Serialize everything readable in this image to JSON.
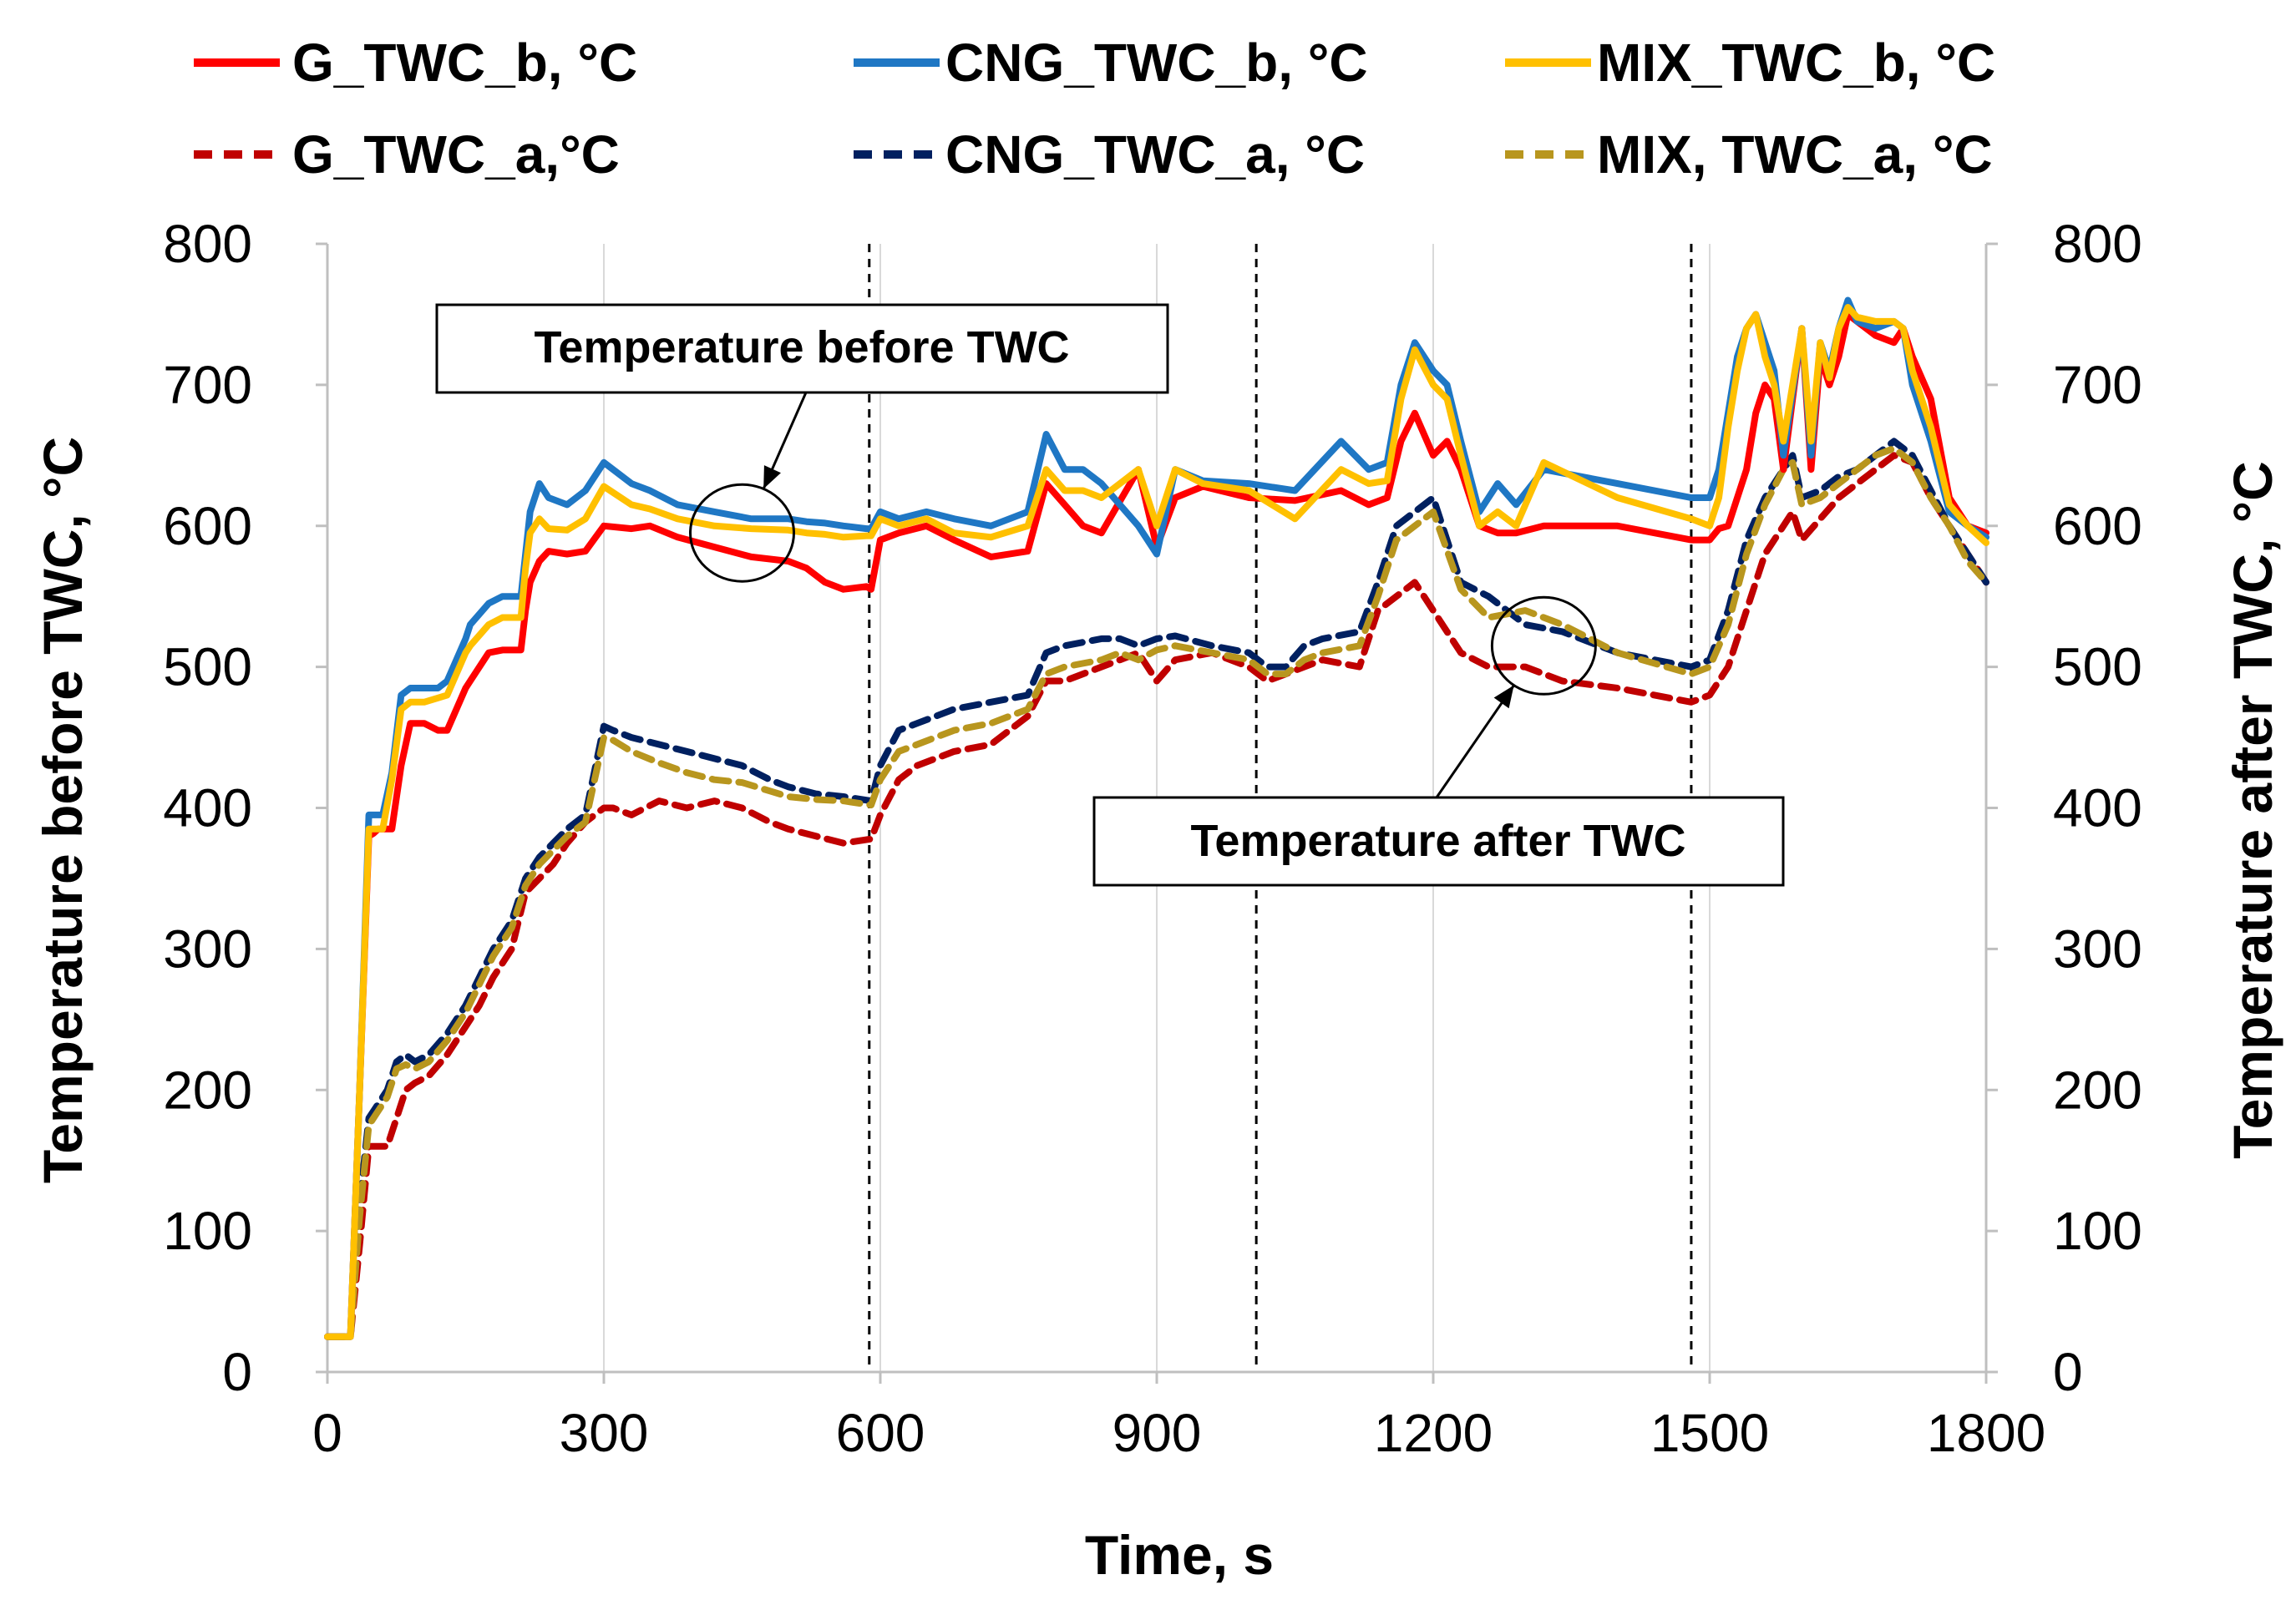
{
  "chart_data": {
    "type": "line",
    "title": "",
    "xlabel": "Time, s",
    "ylabel_left": "Temperature before TWC, °C",
    "ylabel_right": "Temperature after TWC, °C",
    "xlim": [
      0,
      1800
    ],
    "ylim": [
      0,
      800
    ],
    "x_ticks": [
      0,
      300,
      600,
      900,
      1200,
      1500,
      1800
    ],
    "x_tick_labels": [
      "0",
      "300",
      "600",
      "900",
      "1200",
      "1500",
      "1800"
    ],
    "y_ticks": [
      0,
      100,
      200,
      300,
      400,
      500,
      600,
      700,
      800
    ],
    "y_tick_labels": [
      "0",
      "100",
      "200",
      "300",
      "400",
      "500",
      "600",
      "700",
      "800"
    ],
    "grid": "vertical",
    "phase_boundaries": [
      588,
      1008,
      1480
    ],
    "annotations": [
      {
        "text": "Temperature before TWC",
        "target": [
          450,
          595
        ]
      },
      {
        "text": "Temperature after TWC",
        "target": [
          1320,
          515
        ]
      }
    ],
    "series": [
      {
        "name": "G_TWC_b, °C",
        "color": "#ff0000",
        "style": "solid",
        "x": [
          0,
          25,
          35,
          45,
          50,
          55,
          60,
          70,
          80,
          90,
          105,
          120,
          130,
          150,
          155,
          175,
          190,
          210,
          215,
          220,
          230,
          240,
          260,
          280,
          300,
          330,
          350,
          380,
          420,
          460,
          500,
          520,
          540,
          560,
          585,
          590,
          600,
          620,
          650,
          680,
          720,
          760,
          780,
          800,
          820,
          840,
          880,
          900,
          920,
          950,
          1000,
          1050,
          1100,
          1130,
          1150,
          1165,
          1180,
          1200,
          1215,
          1230,
          1250,
          1270,
          1290,
          1320,
          1400,
          1480,
          1500,
          1510,
          1520,
          1530,
          1540,
          1550,
          1560,
          1570,
          1580,
          1600,
          1610,
          1620,
          1630,
          1640,
          1650,
          1660,
          1680,
          1700,
          1710,
          1720,
          1740,
          1760,
          1780,
          1800
        ],
        "y": [
          25,
          25,
          200,
          380,
          382,
          385,
          385,
          385,
          430,
          460,
          460,
          455,
          455,
          485,
          490,
          510,
          512,
          512,
          540,
          560,
          575,
          582,
          580,
          582,
          600,
          598,
          600,
          592,
          585,
          578,
          575,
          570,
          560,
          555,
          557,
          555,
          590,
          595,
          600,
          590,
          578,
          582,
          630,
          615,
          600,
          595,
          640,
          585,
          620,
          628,
          620,
          618,
          625,
          615,
          620,
          660,
          680,
          650,
          660,
          640,
          600,
          595,
          595,
          600,
          600,
          590,
          590,
          598,
          600,
          620,
          640,
          680,
          700,
          690,
          640,
          740,
          640,
          720,
          700,
          720,
          750,
          745,
          735,
          730,
          740,
          720,
          690,
          620,
          600,
          595
        ]
      },
      {
        "name": "CNG_TWC_b, °C",
        "color": "#1f77c4",
        "style": "solid",
        "x": [
          0,
          25,
          35,
          45,
          50,
          55,
          60,
          70,
          80,
          90,
          105,
          120,
          130,
          150,
          155,
          175,
          190,
          210,
          215,
          220,
          230,
          240,
          260,
          280,
          300,
          330,
          350,
          380,
          420,
          460,
          500,
          520,
          540,
          560,
          585,
          590,
          600,
          620,
          650,
          680,
          720,
          760,
          780,
          800,
          820,
          840,
          880,
          900,
          920,
          950,
          1000,
          1050,
          1100,
          1130,
          1150,
          1165,
          1180,
          1200,
          1215,
          1230,
          1250,
          1270,
          1290,
          1320,
          1400,
          1480,
          1500,
          1510,
          1520,
          1530,
          1540,
          1550,
          1560,
          1570,
          1580,
          1600,
          1610,
          1620,
          1630,
          1640,
          1650,
          1660,
          1680,
          1700,
          1710,
          1720,
          1740,
          1760,
          1780,
          1800
        ],
        "y": [
          25,
          25,
          200,
          395,
          395,
          395,
          395,
          425,
          480,
          485,
          485,
          485,
          490,
          520,
          530,
          545,
          550,
          550,
          580,
          610,
          630,
          620,
          615,
          625,
          645,
          630,
          625,
          615,
          610,
          605,
          605,
          603,
          602,
          600,
          598,
          598,
          610,
          605,
          610,
          605,
          600,
          610,
          665,
          640,
          640,
          630,
          600,
          580,
          640,
          632,
          630,
          625,
          660,
          640,
          645,
          700,
          730,
          710,
          700,
          660,
          610,
          630,
          615,
          640,
          630,
          620,
          620,
          640,
          680,
          720,
          740,
          750,
          730,
          710,
          650,
          740,
          650,
          730,
          710,
          740,
          760,
          745,
          740,
          745,
          740,
          700,
          660,
          610,
          600,
          592
        ]
      },
      {
        "name": "MIX_TWC_b, °C",
        "color": "#ffc000",
        "style": "solid",
        "x": [
          0,
          25,
          35,
          45,
          50,
          55,
          60,
          70,
          80,
          90,
          105,
          120,
          130,
          150,
          155,
          175,
          190,
          210,
          215,
          220,
          230,
          240,
          260,
          280,
          300,
          330,
          350,
          380,
          420,
          460,
          500,
          520,
          540,
          560,
          585,
          590,
          600,
          620,
          650,
          680,
          720,
          760,
          780,
          800,
          820,
          840,
          880,
          900,
          920,
          950,
          1000,
          1050,
          1100,
          1130,
          1150,
          1165,
          1180,
          1200,
          1215,
          1230,
          1250,
          1270,
          1290,
          1320,
          1400,
          1480,
          1500,
          1510,
          1520,
          1530,
          1540,
          1550,
          1560,
          1570,
          1580,
          1600,
          1610,
          1620,
          1630,
          1640,
          1650,
          1660,
          1680,
          1700,
          1710,
          1720,
          1740,
          1760,
          1780,
          1800
        ],
        "y": [
          25,
          25,
          200,
          385,
          385,
          385,
          385,
          420,
          470,
          475,
          475,
          478,
          480,
          510,
          515,
          530,
          535,
          535,
          570,
          595,
          605,
          598,
          597,
          605,
          628,
          615,
          612,
          605,
          600,
          598,
          597,
          595,
          594,
          592,
          593,
          593,
          605,
          600,
          605,
          595,
          592,
          600,
          640,
          625,
          625,
          620,
          640,
          600,
          640,
          630,
          625,
          605,
          640,
          630,
          632,
          690,
          725,
          700,
          690,
          650,
          600,
          610,
          600,
          645,
          620,
          605,
          600,
          620,
          670,
          710,
          740,
          750,
          720,
          700,
          660,
          740,
          660,
          730,
          705,
          740,
          755,
          748,
          745,
          745,
          740,
          710,
          670,
          615,
          600,
          588
        ]
      },
      {
        "name": "G_TWC_a,°C",
        "color": "#c00000",
        "style": "dashed",
        "x": [
          0,
          25,
          35,
          45,
          55,
          65,
          75,
          85,
          95,
          110,
          130,
          150,
          165,
          180,
          200,
          215,
          230,
          245,
          260,
          280,
          300,
          310,
          330,
          360,
          390,
          420,
          450,
          480,
          500,
          530,
          560,
          590,
          600,
          620,
          640,
          680,
          720,
          760,
          780,
          800,
          840,
          860,
          880,
          900,
          920,
          960,
          1000,
          1020,
          1040,
          1060,
          1080,
          1120,
          1140,
          1160,
          1180,
          1200,
          1230,
          1260,
          1300,
          1340,
          1400,
          1480,
          1500,
          1520,
          1540,
          1560,
          1580,
          1590,
          1600,
          1620,
          1640,
          1660,
          1680,
          1700,
          1720,
          1740,
          1760,
          1780,
          1800
        ],
        "y": [
          25,
          25,
          90,
          160,
          160,
          160,
          180,
          200,
          205,
          210,
          225,
          245,
          260,
          280,
          300,
          340,
          350,
          360,
          375,
          390,
          400,
          400,
          395,
          405,
          400,
          405,
          400,
          390,
          385,
          380,
          375,
          378,
          395,
          420,
          430,
          440,
          445,
          465,
          490,
          490,
          500,
          505,
          510,
          490,
          505,
          510,
          500,
          490,
          495,
          500,
          505,
          500,
          540,
          550,
          560,
          540,
          510,
          500,
          500,
          490,
          485,
          475,
          480,
          500,
          540,
          580,
          600,
          610,
          590,
          605,
          620,
          630,
          640,
          650,
          645,
          620,
          600,
          580,
          560
        ]
      },
      {
        "name": "CNG_TWC_a, °C",
        "color": "#002060",
        "style": "dashed",
        "x": [
          0,
          25,
          35,
          45,
          55,
          65,
          75,
          85,
          95,
          110,
          130,
          150,
          165,
          180,
          200,
          215,
          230,
          245,
          260,
          280,
          300,
          310,
          330,
          360,
          390,
          420,
          450,
          480,
          500,
          530,
          560,
          590,
          600,
          620,
          640,
          680,
          720,
          760,
          780,
          800,
          840,
          860,
          880,
          900,
          920,
          960,
          1000,
          1020,
          1040,
          1060,
          1080,
          1120,
          1140,
          1160,
          1180,
          1200,
          1230,
          1260,
          1300,
          1340,
          1400,
          1480,
          1500,
          1520,
          1540,
          1560,
          1580,
          1590,
          1600,
          1620,
          1640,
          1660,
          1680,
          1700,
          1720,
          1740,
          1760,
          1780,
          1800
        ],
        "y": [
          25,
          25,
          120,
          180,
          190,
          200,
          220,
          225,
          220,
          225,
          240,
          260,
          280,
          300,
          320,
          350,
          365,
          375,
          385,
          395,
          458,
          455,
          450,
          445,
          440,
          435,
          430,
          420,
          415,
          410,
          408,
          405,
          430,
          455,
          460,
          470,
          475,
          480,
          510,
          515,
          520,
          520,
          515,
          520,
          522,
          515,
          510,
          500,
          500,
          515,
          520,
          525,
          560,
          600,
          610,
          620,
          560,
          550,
          530,
          525,
          510,
          500,
          505,
          540,
          590,
          620,
          640,
          650,
          620,
          625,
          635,
          640,
          650,
          660,
          650,
          625,
          600,
          580,
          560
        ]
      },
      {
        "name": "MIX, TWC_a, °C",
        "color": "#b8961e",
        "style": "dashed",
        "x": [
          0,
          25,
          35,
          45,
          55,
          65,
          75,
          85,
          95,
          110,
          130,
          150,
          165,
          180,
          200,
          215,
          230,
          245,
          260,
          280,
          300,
          310,
          330,
          360,
          390,
          420,
          450,
          480,
          500,
          530,
          560,
          590,
          600,
          620,
          640,
          680,
          720,
          760,
          780,
          800,
          840,
          860,
          880,
          900,
          920,
          960,
          1000,
          1020,
          1040,
          1060,
          1080,
          1120,
          1140,
          1160,
          1180,
          1200,
          1230,
          1260,
          1300,
          1340,
          1400,
          1480,
          1500,
          1520,
          1540,
          1560,
          1580,
          1590,
          1600,
          1620,
          1640,
          1660,
          1680,
          1700,
          1720,
          1740,
          1760,
          1780,
          1800
        ],
        "y": [
          25,
          25,
          110,
          175,
          185,
          195,
          215,
          218,
          215,
          220,
          235,
          255,
          275,
          295,
          315,
          345,
          360,
          370,
          380,
          390,
          450,
          448,
          440,
          432,
          425,
          420,
          418,
          412,
          408,
          406,
          405,
          402,
          420,
          440,
          445,
          455,
          460,
          470,
          495,
          500,
          505,
          510,
          505,
          512,
          515,
          510,
          505,
          495,
          495,
          505,
          510,
          515,
          550,
          590,
          600,
          610,
          555,
          535,
          540,
          530,
          510,
          495,
          500,
          530,
          580,
          615,
          640,
          645,
          615,
          620,
          630,
          640,
          650,
          655,
          645,
          620,
          600,
          575,
          560
        ]
      }
    ]
  }
}
